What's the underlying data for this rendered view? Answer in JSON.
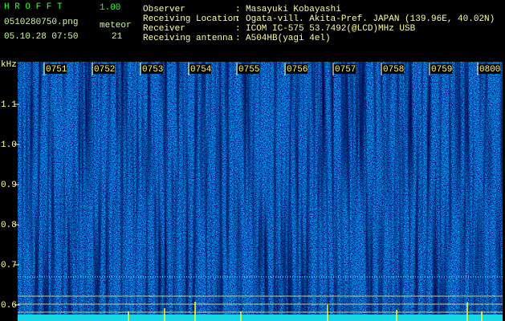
{
  "header": {
    "app_name": "H R O F F T",
    "version": "1.00",
    "file_name": "0510280750.png",
    "meteor_label": "meteor",
    "datetime": "05.10.28 07:50",
    "meteor_count": "21"
  },
  "info": [
    {
      "label": "Observer",
      "value": "Masayuki Kobayashi"
    },
    {
      "label": "Receiving Location",
      "value": "Ogata-vill. Akita-Pref. JAPAN (139.96E, 40.02N)"
    },
    {
      "label": "Receiver",
      "value": "ICOM IC-575 53.7492(@LCD)MHz USB"
    },
    {
      "label": "Receiving antenna",
      "value": "A504HB(yagi 4el)"
    }
  ],
  "separator": ":",
  "spectrogram": {
    "freq_unit": "kHz",
    "freq_labels": [
      "1.1",
      "1.0",
      "0.9",
      "0.8",
      "0.7",
      "0.6"
    ],
    "time_labels": [
      "0751",
      "0752",
      "0753",
      "0754",
      "0755",
      "0756",
      "0757",
      "0758",
      "0759",
      "0800"
    ]
  }
}
